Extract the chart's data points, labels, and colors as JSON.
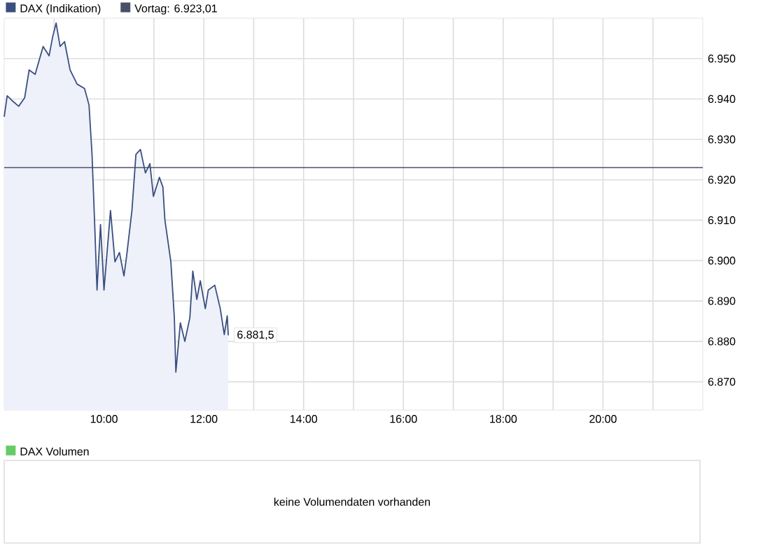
{
  "chart_data": [
    {
      "type": "area",
      "xlim": [
        8,
        22
      ],
      "ylim": [
        6863,
        6960
      ],
      "grid": true,
      "legend": "top",
      "xticks": [
        {
          "value": 9,
          "label": null
        },
        {
          "value": 10,
          "label": "10:00"
        },
        {
          "value": 11,
          "label": null
        },
        {
          "value": 12,
          "label": "12:00"
        },
        {
          "value": 13,
          "label": null
        },
        {
          "value": 14,
          "label": "14:00"
        },
        {
          "value": 15,
          "label": null
        },
        {
          "value": 16,
          "label": "16:00"
        },
        {
          "value": 17,
          "label": null
        },
        {
          "value": 18,
          "label": "18:00"
        },
        {
          "value": 19,
          "label": null
        },
        {
          "value": 20,
          "label": "20:00"
        },
        {
          "value": 21,
          "label": null
        }
      ],
      "yticks": [
        {
          "value": 6870,
          "label": "6.870"
        },
        {
          "value": 6880,
          "label": "6.880"
        },
        {
          "value": 6890,
          "label": "6.890"
        },
        {
          "value": 6900,
          "label": "6.900"
        },
        {
          "value": 6910,
          "label": "6.910"
        },
        {
          "value": 6920,
          "label": "6.920"
        },
        {
          "value": 6930,
          "label": "6.930"
        },
        {
          "value": 6940,
          "label": "6.940"
        },
        {
          "value": 6950,
          "label": "6.950"
        }
      ],
      "series": [
        {
          "name": "DAX (Indikation)",
          "color": "#3a4f7f",
          "x": [
            8.0,
            8.06,
            8.15,
            8.29,
            8.41,
            8.5,
            8.62,
            8.78,
            8.9,
            8.97,
            9.04,
            9.12,
            9.21,
            9.32,
            9.46,
            9.61,
            9.7,
            9.76,
            9.81,
            9.86,
            9.93,
            10.0,
            10.13,
            10.22,
            10.31,
            10.4,
            10.45,
            10.56,
            10.64,
            10.73,
            10.83,
            10.92,
            10.99,
            11.11,
            11.18,
            11.22,
            11.34,
            11.41,
            11.44,
            11.53,
            11.62,
            11.72,
            11.78,
            11.86,
            11.93,
            12.03,
            12.09,
            12.22,
            12.33,
            12.41,
            12.47,
            12.49
          ],
          "values": [
            6935.6,
            6940.8,
            6939.7,
            6938.2,
            6940.3,
            6947.2,
            6946.1,
            6953.0,
            6950.7,
            6955.3,
            6958.8,
            6953.0,
            6954.2,
            6947.2,
            6943.7,
            6942.6,
            6938.5,
            6926.3,
            6910.1,
            6892.7,
            6908.9,
            6892.7,
            6912.4,
            6899.7,
            6902.0,
            6896.2,
            6900.8,
            6912.4,
            6926.3,
            6927.5,
            6921.7,
            6924.0,
            6915.9,
            6920.6,
            6918.2,
            6910.1,
            6899.7,
            6885.8,
            6872.4,
            6884.6,
            6880.0,
            6885.8,
            6897.4,
            6890.4,
            6895.0,
            6888.1,
            6892.7,
            6893.9,
            6888.1,
            6881.7,
            6886.3,
            6881.5
          ]
        }
      ],
      "ref_lines": [
        {
          "axis": "y",
          "value": 6923.01,
          "label": "Vortag: 6.923,01",
          "color": "#4a5068"
        }
      ],
      "annotations": [
        {
          "text": "6.881,5",
          "x": 12.49,
          "y": 6881.5
        }
      ]
    },
    {
      "type": "other",
      "title": "DAX Volumen",
      "annotations": [
        "keine Volumendaten vorhanden"
      ]
    }
  ]
}
